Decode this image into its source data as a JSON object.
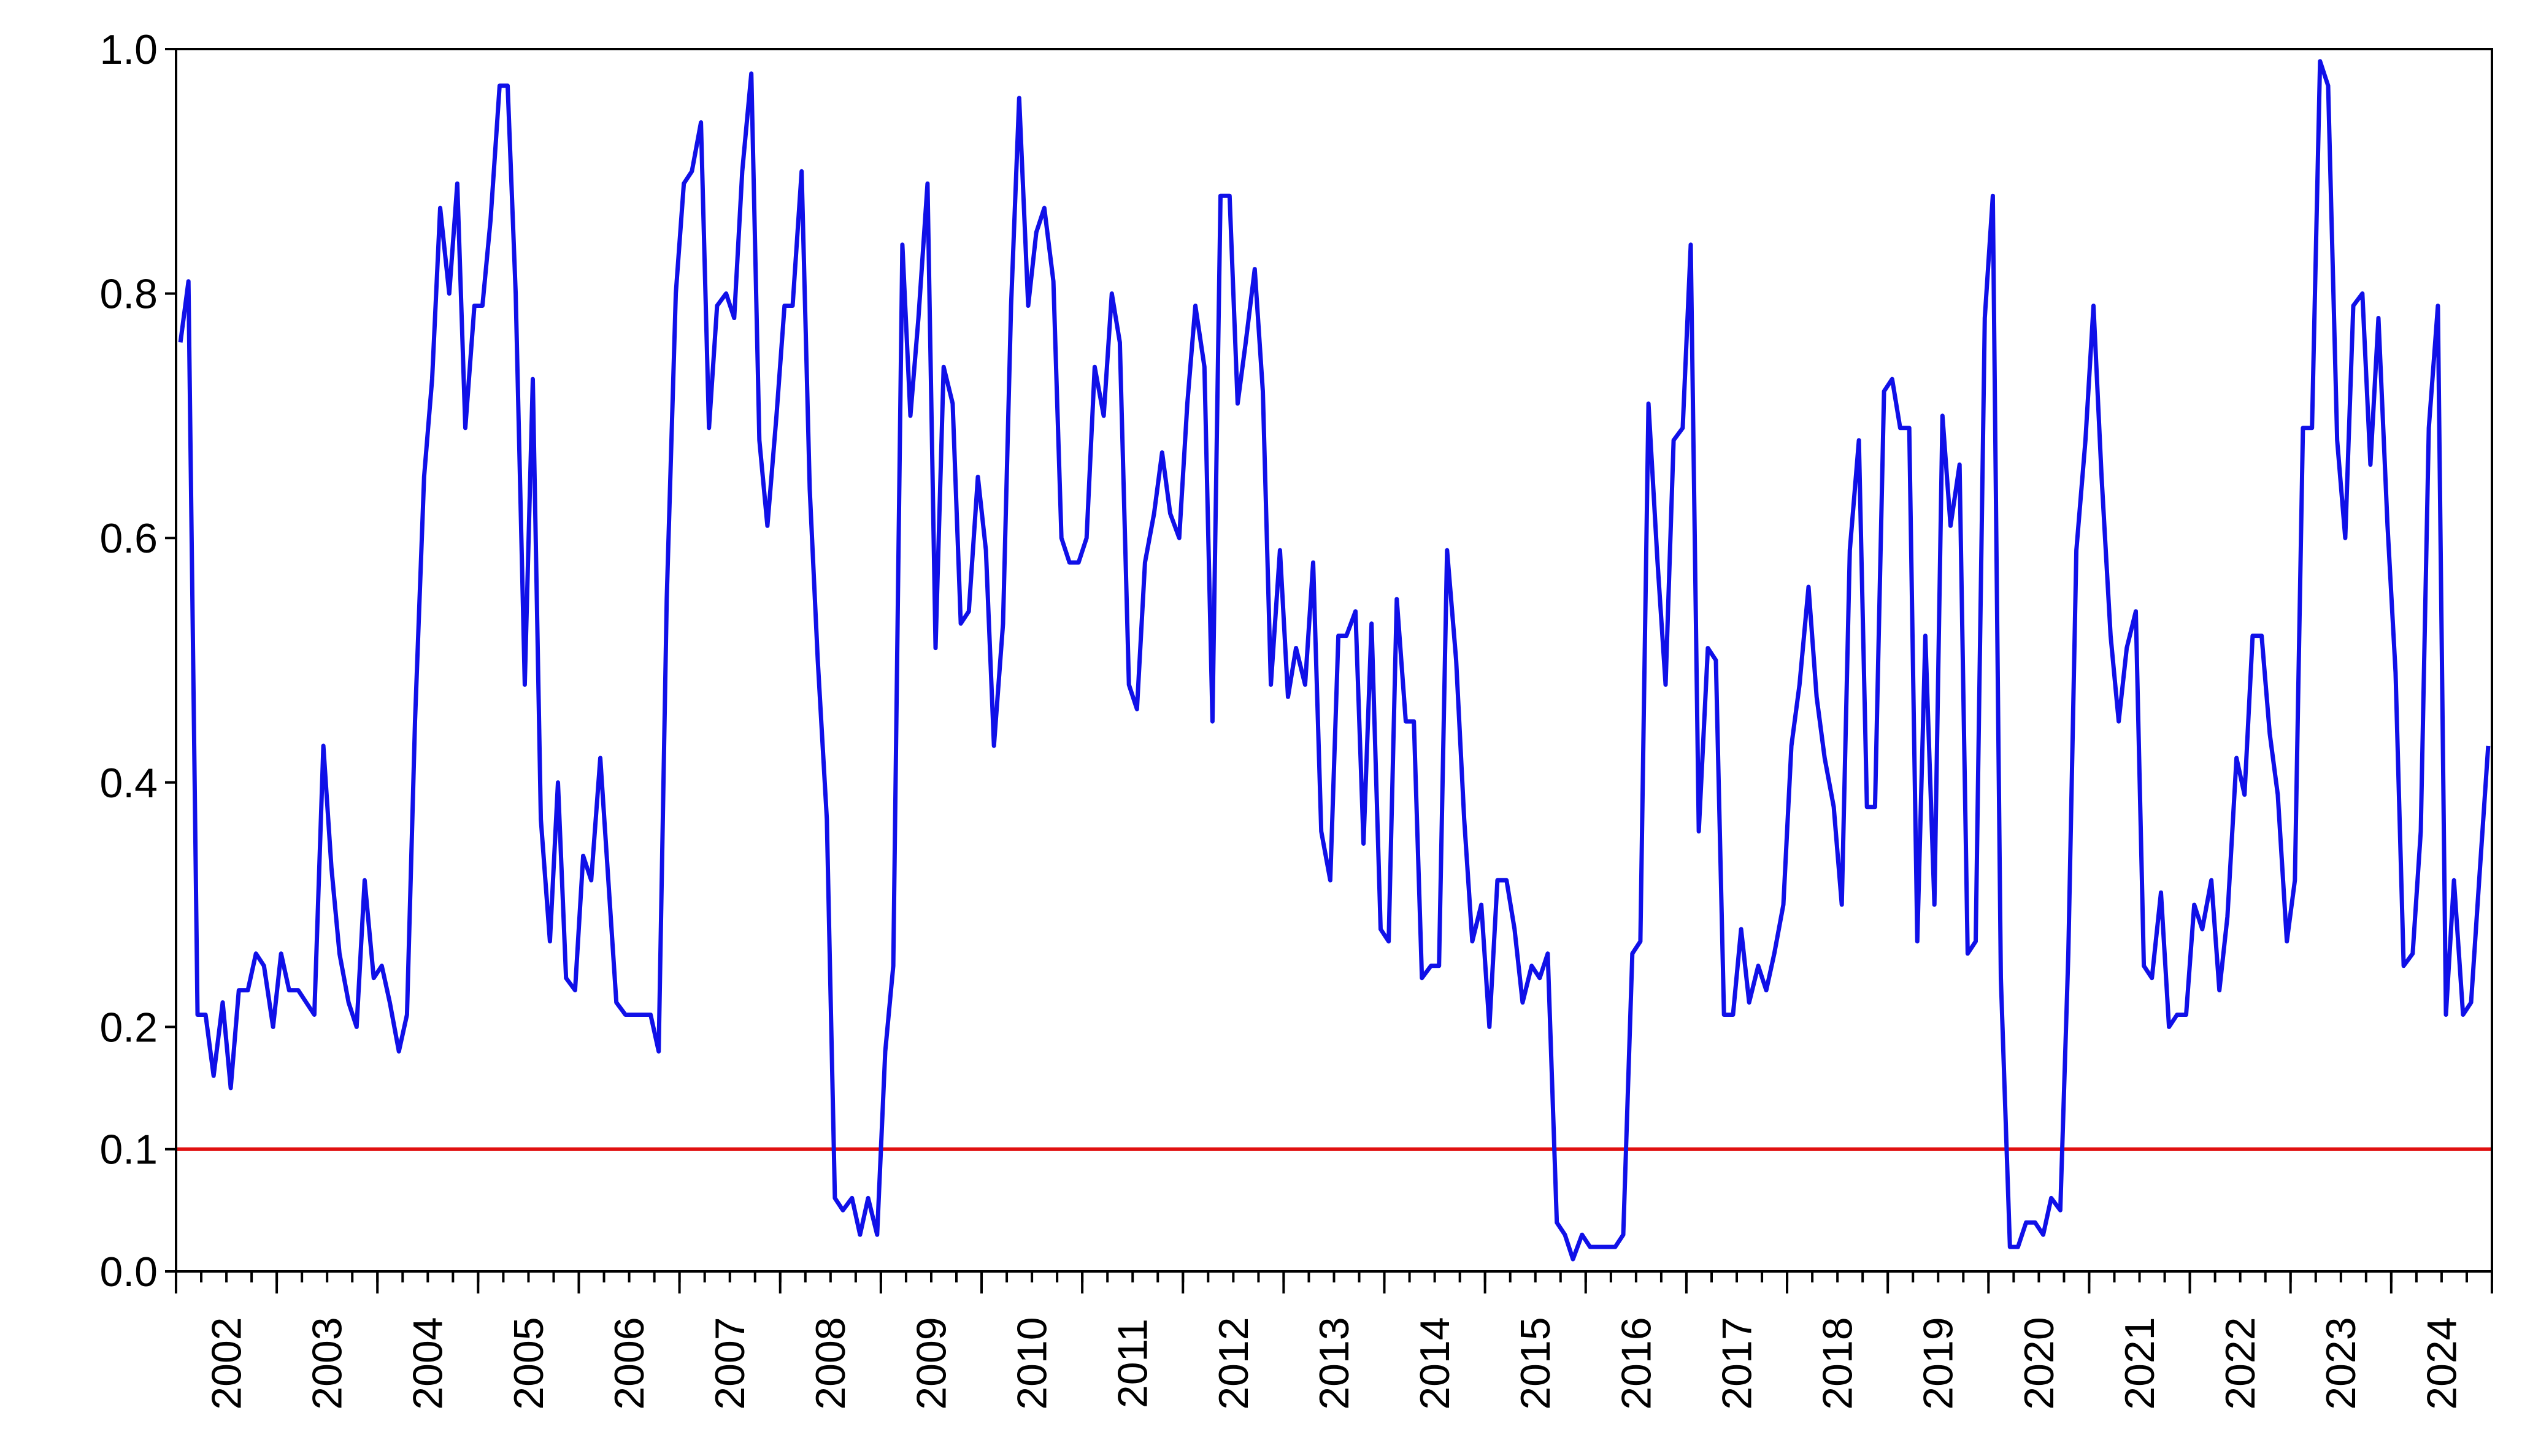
{
  "chart_data": {
    "type": "line",
    "title": "",
    "xlabel": "",
    "ylabel": "",
    "x_range": [
      2001.917,
      2024.917
    ],
    "ylim": [
      0.0,
      1.0
    ],
    "y_ticks": [
      0.0,
      0.1,
      0.2,
      0.4,
      0.6,
      0.8,
      1.0
    ],
    "y_tick_labels": [
      "0.0",
      "0.1",
      "0.2",
      "0.4",
      "0.6",
      "0.8",
      "1.0"
    ],
    "x_tick_labels": [
      "2002",
      "2003",
      "2004",
      "2005",
      "2006",
      "2007",
      "2008",
      "2009",
      "2010",
      "2011",
      "2012",
      "2013",
      "2014",
      "2015",
      "2016",
      "2017",
      "2018",
      "2019",
      "2020",
      "2021",
      "2022",
      "2023",
      "2024"
    ],
    "grid": false,
    "legend": "none",
    "colors": {
      "series": "#1010e8",
      "threshold": "#e01010"
    },
    "threshold": 0.1,
    "series": [
      {
        "x": [
          2001.96,
          2002.04,
          2002.13,
          2002.21,
          2002.29,
          2002.38,
          2002.46,
          2002.54,
          2002.63,
          2002.71,
          2002.79,
          2002.88,
          2002.96,
          2003.04,
          2003.13,
          2003.21,
          2003.29,
          2003.38,
          2003.46,
          2003.54,
          2003.63,
          2003.71,
          2003.79,
          2003.88,
          2003.96,
          2004.04,
          2004.13,
          2004.21,
          2004.29,
          2004.38,
          2004.46,
          2004.54,
          2004.63,
          2004.71,
          2004.79,
          2004.88,
          2004.96,
          2005.04,
          2005.13,
          2005.21,
          2005.29,
          2005.38,
          2005.46,
          2005.54,
          2005.63,
          2005.71,
          2005.79,
          2005.88,
          2005.96,
          2006.04,
          2006.13,
          2006.21,
          2006.29,
          2006.38,
          2006.46,
          2006.54,
          2006.63,
          2006.71,
          2006.79,
          2006.88,
          2006.96,
          2007.04,
          2007.13,
          2007.21,
          2007.29,
          2007.38,
          2007.46,
          2007.54,
          2007.63,
          2007.71,
          2007.79,
          2007.88,
          2007.96,
          2008.04,
          2008.13,
          2008.21,
          2008.29,
          2008.38,
          2008.46,
          2008.54,
          2008.63,
          2008.71,
          2008.79,
          2008.88,
          2008.96,
          2009.04,
          2009.13,
          2009.21,
          2009.29,
          2009.38,
          2009.46,
          2009.54,
          2009.63,
          2009.71,
          2009.79,
          2009.88,
          2009.96,
          2010.04,
          2010.13,
          2010.21,
          2010.29,
          2010.38,
          2010.46,
          2010.54,
          2010.63,
          2010.71,
          2010.79,
          2010.88,
          2010.96,
          2011.04,
          2011.13,
          2011.21,
          2011.29,
          2011.38,
          2011.46,
          2011.54,
          2011.63,
          2011.71,
          2011.79,
          2011.88,
          2011.96,
          2012.04,
          2012.13,
          2012.21,
          2012.29,
          2012.38,
          2012.46,
          2012.54,
          2012.63,
          2012.71,
          2012.79,
          2012.88,
          2012.96,
          2013.04,
          2013.13,
          2013.21,
          2013.29,
          2013.38,
          2013.46,
          2013.54,
          2013.63,
          2013.71,
          2013.79,
          2013.88,
          2013.96,
          2014.04,
          2014.13,
          2014.21,
          2014.29,
          2014.38,
          2014.46,
          2014.54,
          2014.63,
          2014.71,
          2014.79,
          2014.88,
          2014.96,
          2015.04,
          2015.13,
          2015.21,
          2015.29,
          2015.38,
          2015.46,
          2015.54,
          2015.63,
          2015.71,
          2015.79,
          2015.88,
          2015.96,
          2016.04,
          2016.13,
          2016.21,
          2016.29,
          2016.38,
          2016.46,
          2016.54,
          2016.63,
          2016.71,
          2016.79,
          2016.88,
          2016.96,
          2017.04,
          2017.13,
          2017.21,
          2017.29,
          2017.38,
          2017.46,
          2017.54,
          2017.63,
          2017.71,
          2017.79,
          2017.88,
          2017.96,
          2018.04,
          2018.13,
          2018.21,
          2018.29,
          2018.38,
          2018.46,
          2018.54,
          2018.63,
          2018.71,
          2018.79,
          2018.88,
          2018.96,
          2019.04,
          2019.13,
          2019.21,
          2019.29,
          2019.38,
          2019.46,
          2019.54,
          2019.63,
          2019.71,
          2019.79,
          2019.88,
          2019.96,
          2020.04,
          2020.13,
          2020.21,
          2020.29,
          2020.38,
          2020.46,
          2020.54,
          2020.63,
          2020.71,
          2020.79,
          2020.88,
          2020.96,
          2021.04,
          2021.13,
          2021.21,
          2021.29,
          2021.38,
          2021.46,
          2021.54,
          2021.63,
          2021.71,
          2021.79,
          2021.88,
          2021.96,
          2022.04,
          2022.13,
          2022.21,
          2022.29,
          2022.38,
          2022.46,
          2022.54,
          2022.63,
          2022.71,
          2022.79,
          2022.88,
          2022.96,
          2023.04,
          2023.13,
          2023.21,
          2023.29,
          2023.38,
          2023.46,
          2023.54,
          2023.63,
          2023.71,
          2023.79,
          2023.88,
          2023.96,
          2024.04,
          2024.13,
          2024.21,
          2024.29,
          2024.38,
          2024.46,
          2024.54,
          2024.63,
          2024.71,
          2024.79,
          2024.88
        ],
        "y": [
          0.76,
          0.81,
          0.21,
          0.21,
          0.16,
          0.22,
          0.15,
          0.23,
          0.23,
          0.26,
          0.25,
          0.2,
          0.26,
          0.23,
          0.23,
          0.22,
          0.21,
          0.43,
          0.33,
          0.26,
          0.22,
          0.2,
          0.32,
          0.24,
          0.25,
          0.22,
          0.18,
          0.21,
          0.45,
          0.65,
          0.73,
          0.87,
          0.8,
          0.89,
          0.69,
          0.79,
          0.79,
          0.86,
          0.97,
          0.97,
          0.8,
          0.48,
          0.73,
          0.37,
          0.27,
          0.4,
          0.24,
          0.23,
          0.34,
          0.32,
          0.42,
          0.32,
          0.22,
          0.21,
          0.21,
          0.21,
          0.21,
          0.18,
          0.55,
          0.8,
          0.89,
          0.9,
          0.94,
          0.69,
          0.79,
          0.8,
          0.78,
          0.9,
          0.98,
          0.68,
          0.61,
          0.7,
          0.79,
          0.79,
          0.9,
          0.64,
          0.5,
          0.37,
          0.06,
          0.05,
          0.06,
          0.03,
          0.06,
          0.03,
          0.18,
          0.25,
          0.84,
          0.7,
          0.78,
          0.89,
          0.51,
          0.74,
          0.71,
          0.53,
          0.54,
          0.65,
          0.59,
          0.43,
          0.53,
          0.79,
          0.96,
          0.79,
          0.85,
          0.87,
          0.81,
          0.6,
          0.58,
          0.58,
          0.6,
          0.74,
          0.7,
          0.8,
          0.76,
          0.48,
          0.46,
          0.58,
          0.62,
          0.67,
          0.62,
          0.6,
          0.71,
          0.79,
          0.74,
          0.45,
          0.88,
          0.88,
          0.71,
          0.76,
          0.82,
          0.72,
          0.48,
          0.59,
          0.47,
          0.51,
          0.48,
          0.58,
          0.36,
          0.32,
          0.52,
          0.52,
          0.54,
          0.35,
          0.53,
          0.28,
          0.27,
          0.55,
          0.45,
          0.45,
          0.24,
          0.25,
          0.25,
          0.59,
          0.5,
          0.37,
          0.27,
          0.3,
          0.2,
          0.32,
          0.32,
          0.28,
          0.22,
          0.25,
          0.24,
          0.26,
          0.04,
          0.03,
          0.01,
          0.03,
          0.02,
          0.02,
          0.02,
          0.02,
          0.03,
          0.26,
          0.27,
          0.71,
          0.58,
          0.48,
          0.68,
          0.69,
          0.84,
          0.36,
          0.51,
          0.5,
          0.21,
          0.21,
          0.28,
          0.22,
          0.25,
          0.23,
          0.26,
          0.3,
          0.43,
          0.48,
          0.56,
          0.47,
          0.42,
          0.38,
          0.3,
          0.59,
          0.68,
          0.38,
          0.38,
          0.72,
          0.73,
          0.69,
          0.69,
          0.27,
          0.52,
          0.3,
          0.7,
          0.61,
          0.66,
          0.26,
          0.27,
          0.78,
          0.88,
          0.24,
          0.02,
          0.02,
          0.04,
          0.04,
          0.03,
          0.06,
          0.05,
          0.26,
          0.59,
          0.68,
          0.79,
          0.65,
          0.52,
          0.45,
          0.51,
          0.54,
          0.25,
          0.24,
          0.31,
          0.2,
          0.21,
          0.21,
          0.3,
          0.28,
          0.32,
          0.23,
          0.29,
          0.42,
          0.39,
          0.52,
          0.52,
          0.44,
          0.39,
          0.27,
          0.32,
          0.69,
          0.69,
          0.99,
          0.97,
          0.68,
          0.6,
          0.79,
          0.8,
          0.66,
          0.78,
          0.61,
          0.49,
          0.25,
          0.26,
          0.36,
          0.69,
          0.79,
          0.21,
          0.32,
          0.21,
          0.22,
          0.32,
          0.43
        ]
      }
    ]
  }
}
